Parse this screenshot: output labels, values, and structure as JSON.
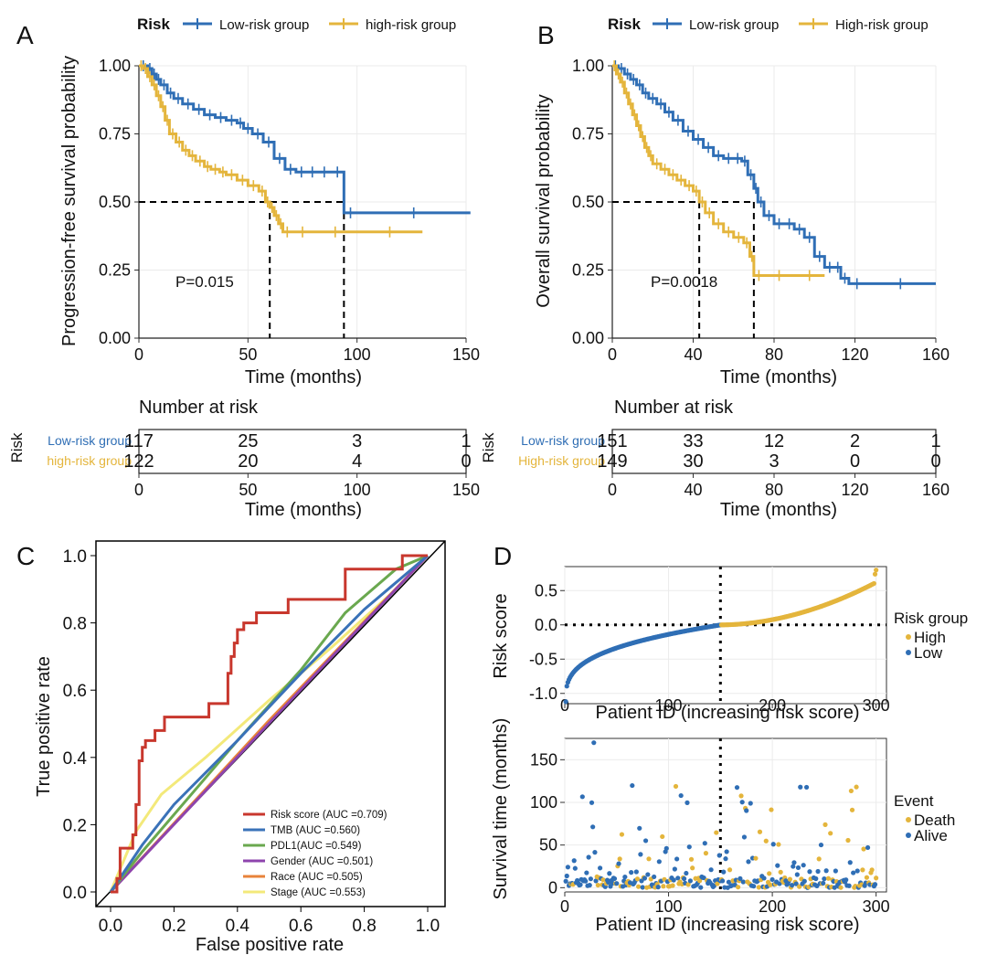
{
  "colors": {
    "low": "#2f6eb5",
    "high": "#e4b53c",
    "grid": "#ebebeb",
    "roc": {
      "Risk score": "#c8372d",
      "TMB": "#3a72b8",
      "PDL1": "#6aa84f",
      "Gender": "#8e44ad",
      "Race": "#e8833a",
      "Stage": "#f3e97a"
    }
  },
  "chart_data": [
    {
      "panel": "A",
      "type": "line",
      "subtype": "kaplan-meier",
      "legend_title": "Risk",
      "legend": [
        "Low-risk group",
        "high-risk group"
      ],
      "ylabel": "Progression-free survival probability",
      "xlabel": "Time (months)",
      "xlim": [
        0,
        150
      ],
      "ylim": [
        0,
        1
      ],
      "xticks": [
        0,
        50,
        100,
        150
      ],
      "yticks": [
        0,
        0.25,
        0.5,
        0.75,
        1
      ],
      "ytick_labels": [
        "0.00",
        "0.25",
        "0.50",
        "0.75",
        "1.00"
      ],
      "pvalue": "P=0.015",
      "median_line_y": 0.5,
      "medians": [
        60,
        94
      ],
      "series": [
        {
          "name": "Low-risk group",
          "x": [
            0,
            4,
            6,
            8,
            10,
            13,
            16,
            20,
            25,
            30,
            35,
            40,
            45,
            48,
            52,
            57,
            62,
            67,
            72,
            77,
            82,
            88,
            94,
            100,
            152
          ],
          "y": [
            1.0,
            0.99,
            0.97,
            0.95,
            0.93,
            0.9,
            0.88,
            0.86,
            0.84,
            0.82,
            0.81,
            0.8,
            0.79,
            0.77,
            0.75,
            0.72,
            0.66,
            0.62,
            0.61,
            0.61,
            0.61,
            0.61,
            0.46,
            0.46,
            0.46
          ]
        },
        {
          "name": "high-risk group",
          "x": [
            0,
            2,
            4,
            6,
            8,
            10,
            12,
            14,
            17,
            20,
            23,
            26,
            30,
            33,
            37,
            40,
            45,
            50,
            55,
            58,
            60,
            62,
            64,
            66,
            70,
            80,
            100,
            130
          ],
          "y": [
            1.0,
            0.99,
            0.96,
            0.93,
            0.89,
            0.85,
            0.8,
            0.75,
            0.72,
            0.69,
            0.67,
            0.65,
            0.63,
            0.62,
            0.61,
            0.6,
            0.58,
            0.56,
            0.54,
            0.5,
            0.48,
            0.45,
            0.42,
            0.39,
            0.39,
            0.39,
            0.39,
            0.39
          ]
        }
      ],
      "risk_table": {
        "title": "Number at risk",
        "ylabel": "Risk",
        "xlabel": "Time (months)",
        "times": [
          0,
          50,
          100,
          150
        ],
        "rows": [
          {
            "group": "Low-risk group",
            "counts": [
              "117",
              "25",
              "3",
              "1"
            ]
          },
          {
            "group": "high-risk group",
            "counts": [
              "122",
              "20",
              "4",
              "0"
            ]
          }
        ]
      }
    },
    {
      "panel": "B",
      "type": "line",
      "subtype": "kaplan-meier",
      "legend_title": "Risk",
      "legend": [
        "Low-risk group",
        "High-risk group"
      ],
      "ylabel": "Overall survival probability",
      "xlabel": "Time (months)",
      "xlim": [
        0,
        160
      ],
      "ylim": [
        0,
        1
      ],
      "xticks": [
        0,
        40,
        80,
        120,
        160
      ],
      "yticks": [
        0,
        0.25,
        0.5,
        0.75,
        1
      ],
      "ytick_labels": [
        "0.00",
        "0.25",
        "0.50",
        "0.75",
        "1.00"
      ],
      "pvalue": "P=0.0018",
      "median_line_y": 0.5,
      "medians": [
        43,
        70
      ],
      "series": [
        {
          "name": "Low-risk group",
          "x": [
            0,
            3,
            6,
            9,
            12,
            15,
            18,
            22,
            26,
            30,
            35,
            40,
            45,
            50,
            55,
            60,
            64,
            67,
            70,
            72,
            75,
            80,
            85,
            90,
            95,
            100,
            105,
            110,
            113,
            117,
            125,
            160
          ],
          "y": [
            1.0,
            0.99,
            0.97,
            0.95,
            0.93,
            0.9,
            0.88,
            0.86,
            0.83,
            0.8,
            0.76,
            0.73,
            0.7,
            0.67,
            0.66,
            0.66,
            0.65,
            0.6,
            0.55,
            0.5,
            0.45,
            0.42,
            0.42,
            0.4,
            0.37,
            0.3,
            0.26,
            0.26,
            0.22,
            0.2,
            0.2,
            0.2
          ]
        },
        {
          "name": "High-risk group",
          "x": [
            0,
            2,
            4,
            6,
            8,
            10,
            12,
            14,
            16,
            18,
            20,
            24,
            28,
            32,
            36,
            40,
            43,
            46,
            50,
            55,
            60,
            65,
            68,
            70,
            75,
            90,
            105
          ],
          "y": [
            1.0,
            0.97,
            0.94,
            0.9,
            0.86,
            0.82,
            0.78,
            0.74,
            0.7,
            0.67,
            0.64,
            0.62,
            0.6,
            0.58,
            0.56,
            0.54,
            0.5,
            0.46,
            0.42,
            0.39,
            0.37,
            0.35,
            0.3,
            0.23,
            0.23,
            0.23,
            0.23
          ]
        }
      ],
      "risk_table": {
        "title": "Number at risk",
        "ylabel": "Risk",
        "xlabel": "Time (months)",
        "times": [
          0,
          40,
          80,
          120,
          160
        ],
        "rows": [
          {
            "group": "Low-risk group",
            "counts": [
              "151",
              "33",
              "12",
              "2",
              "1"
            ]
          },
          {
            "group": "High-risk group",
            "counts": [
              "149",
              "30",
              "3",
              "0",
              "0"
            ]
          }
        ]
      }
    },
    {
      "panel": "C",
      "type": "line",
      "subtype": "roc",
      "xlabel": "False positive rate",
      "ylabel": "True positive rate",
      "xlim": [
        0,
        1
      ],
      "ylim": [
        0,
        1
      ],
      "ticks": [
        0.0,
        0.2,
        0.4,
        0.6,
        0.8,
        1.0
      ],
      "tick_labels": [
        "0.0",
        "0.2",
        "0.4",
        "0.6",
        "0.8",
        "1.0"
      ],
      "series": [
        {
          "name": "Risk score",
          "legend": "Risk score (AUC =0.709)",
          "x": [
            0,
            0.02,
            0.02,
            0.03,
            0.03,
            0.07,
            0.07,
            0.08,
            0.08,
            0.09,
            0.09,
            0.1,
            0.1,
            0.11,
            0.11,
            0.14,
            0.14,
            0.17,
            0.17,
            0.31,
            0.31,
            0.37,
            0.37,
            0.38,
            0.38,
            0.39,
            0.39,
            0.4,
            0.4,
            0.42,
            0.42,
            0.46,
            0.46,
            0.56,
            0.56,
            0.74,
            0.74,
            0.92,
            0.92,
            1.0
          ],
          "y": [
            0,
            0,
            0.04,
            0.04,
            0.13,
            0.13,
            0.17,
            0.17,
            0.26,
            0.26,
            0.39,
            0.39,
            0.43,
            0.43,
            0.45,
            0.45,
            0.48,
            0.48,
            0.52,
            0.52,
            0.56,
            0.56,
            0.65,
            0.65,
            0.7,
            0.7,
            0.74,
            0.74,
            0.78,
            0.78,
            0.8,
            0.8,
            0.83,
            0.83,
            0.87,
            0.87,
            0.96,
            0.96,
            1.0,
            1.0
          ]
        },
        {
          "name": "TMB",
          "legend": "TMB (AUC =0.560)",
          "x": [
            0,
            0.1,
            0.2,
            0.4,
            0.6,
            0.8,
            0.9,
            1.0
          ],
          "y": [
            0,
            0.14,
            0.26,
            0.45,
            0.65,
            0.84,
            0.92,
            1.0
          ]
        },
        {
          "name": "PDL1",
          "legend": "PDL1(AUC =0.549)",
          "x": [
            0,
            0.1,
            0.2,
            0.4,
            0.6,
            0.74,
            0.9,
            1.0
          ],
          "y": [
            0,
            0.12,
            0.23,
            0.45,
            0.66,
            0.83,
            0.96,
            1.0
          ]
        },
        {
          "name": "Gender",
          "legend": "Gender (AUC =0.501)",
          "x": [
            0,
            0.5,
            1.0
          ],
          "y": [
            0,
            0.502,
            1.0
          ]
        },
        {
          "name": "Race",
          "legend": "Race (AUC =0.505)",
          "x": [
            0,
            0.5,
            1.0
          ],
          "y": [
            0,
            0.51,
            1.0
          ]
        },
        {
          "name": "Stage",
          "legend": "Stage (AUC =0.553)",
          "x": [
            0,
            0.08,
            0.16,
            0.3,
            0.5,
            0.7,
            0.9,
            1.0
          ],
          "y": [
            0,
            0.18,
            0.29,
            0.4,
            0.57,
            0.73,
            0.9,
            1.0
          ]
        }
      ]
    },
    {
      "panel": "D-top",
      "type": "scatter",
      "xlabel": "Patient ID (increasing risk score)",
      "ylabel": "Risk score",
      "xlim": [
        0,
        310
      ],
      "ylim": [
        -1.15,
        0.85
      ],
      "xticks": [
        0,
        100,
        200,
        300
      ],
      "yticks": [
        -1.0,
        -0.5,
        0.0,
        0.5
      ],
      "ytick_labels": [
        "-1.0",
        "-0.5",
        "0.0",
        "0.5"
      ],
      "cutoff_x": 150,
      "cutoff_y": 0,
      "legend_title": "Risk group",
      "legend": [
        "High",
        "Low"
      ],
      "n_patients": 300
    },
    {
      "panel": "D-bottom",
      "type": "scatter",
      "xlabel": "Patient ID (increasing risk score)",
      "ylabel": "Survival time (months)",
      "xlim": [
        0,
        310
      ],
      "ylim": [
        -5,
        175
      ],
      "xticks": [
        0,
        100,
        200,
        300
      ],
      "yticks": [
        0,
        50,
        100,
        150
      ],
      "cutoff_x": 150,
      "legend_title": "Event",
      "legend": [
        "Death",
        "Alive"
      ]
    }
  ],
  "panel_labels": [
    "A",
    "B",
    "C",
    "D"
  ]
}
